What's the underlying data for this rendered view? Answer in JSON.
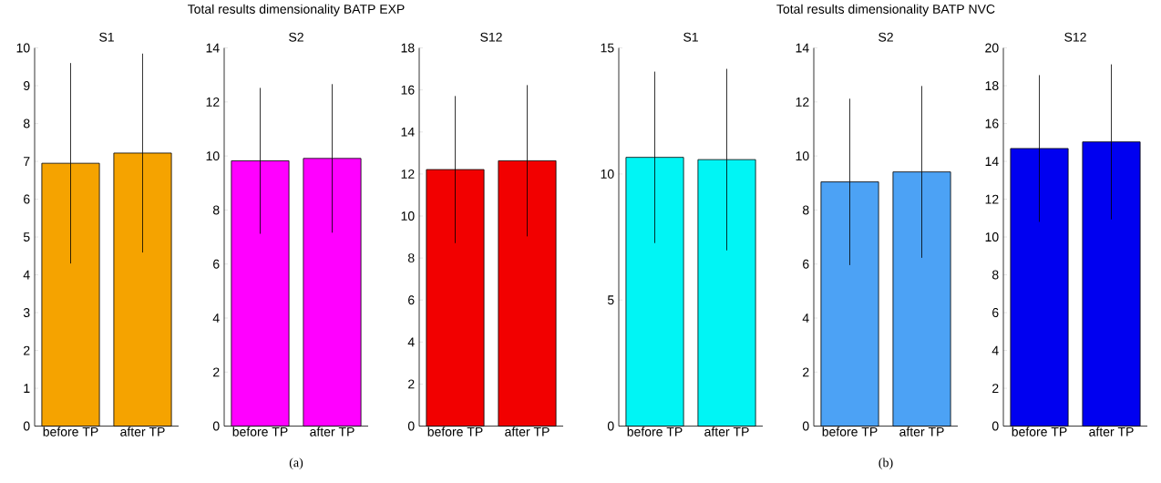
{
  "chart_data": [
    {
      "type": "bar",
      "title": "S1",
      "categories": [
        "before TP",
        "after TP"
      ],
      "values": [
        6.95,
        7.22
      ],
      "errors": [
        2.65,
        2.63
      ],
      "color": "#f5a300",
      "ylim": [
        0,
        10
      ],
      "yticks": [
        0,
        1,
        2,
        3,
        4,
        5,
        6,
        7,
        8,
        9,
        10
      ]
    },
    {
      "type": "bar",
      "title": "S2",
      "categories": [
        "before TP",
        "after TP"
      ],
      "values": [
        9.82,
        9.91
      ],
      "errors": [
        2.7,
        2.75
      ],
      "color": "#ff00ff",
      "ylim": [
        0,
        14
      ],
      "yticks": [
        0,
        2,
        4,
        6,
        8,
        10,
        12,
        14
      ],
      "annotations": [
        "Total results dimensionality BATP EXP",
        "(a)"
      ]
    },
    {
      "type": "bar",
      "title": "S12",
      "categories": [
        "before TP",
        "after TP"
      ],
      "values": [
        12.21,
        12.63
      ],
      "errors": [
        3.5,
        3.6
      ],
      "color": "#f20000",
      "ylim": [
        0,
        18
      ],
      "yticks": [
        0,
        2,
        4,
        6,
        8,
        10,
        12,
        14,
        16,
        18
      ]
    },
    {
      "type": "bar",
      "title": "S1",
      "categories": [
        "before TP",
        "after TP"
      ],
      "values": [
        10.66,
        10.57
      ],
      "errors": [
        3.4,
        3.6
      ],
      "color": "#00f5f5",
      "ylim": [
        0,
        15
      ],
      "yticks": [
        0,
        5,
        10,
        15
      ]
    },
    {
      "type": "bar",
      "title": "S2",
      "categories": [
        "before TP",
        "after TP"
      ],
      "values": [
        9.04,
        9.41
      ],
      "errors": [
        3.08,
        3.18
      ],
      "color": "#4ca2f5",
      "ylim": [
        0,
        14
      ],
      "yticks": [
        0,
        2,
        4,
        6,
        8,
        10,
        12,
        14
      ],
      "annotations": [
        "Total results dimensionality BATP NVC",
        "(b)"
      ]
    },
    {
      "type": "bar",
      "title": "S12",
      "categories": [
        "before TP",
        "after TP"
      ],
      "values": [
        14.68,
        15.03
      ],
      "errors": [
        3.88,
        4.1
      ],
      "color": "#0000f0",
      "ylim": [
        0,
        20
      ],
      "yticks": [
        0,
        2,
        4,
        6,
        8,
        10,
        12,
        14,
        16,
        18,
        20
      ]
    }
  ]
}
